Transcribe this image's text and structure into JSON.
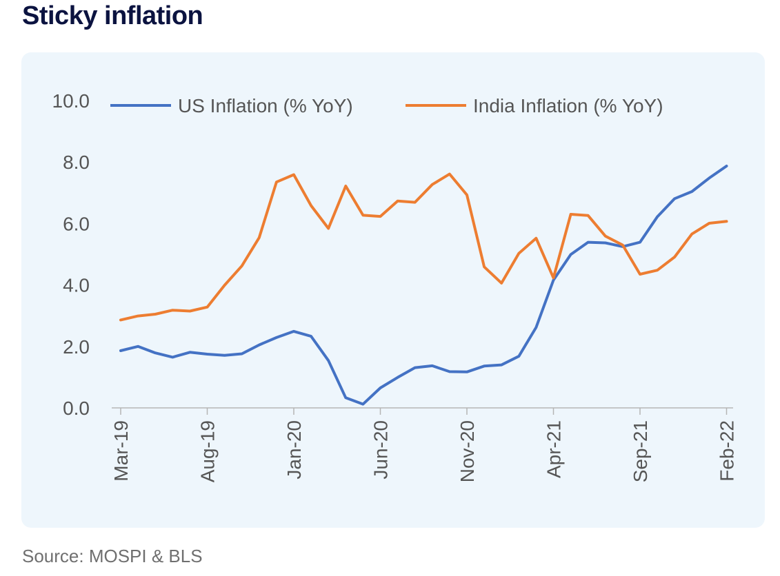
{
  "title": "Sticky inflation",
  "source": "Source: MOSPI & BLS",
  "chart_data": {
    "type": "line",
    "title": "Sticky inflation",
    "xlabel": "",
    "ylabel": "",
    "ylim": [
      0,
      10
    ],
    "yticks": [
      "0.0",
      "2.0",
      "4.0",
      "6.0",
      "8.0",
      "10.0"
    ],
    "x": [
      "Mar-19",
      "Apr-19",
      "May-19",
      "Jun-19",
      "Jul-19",
      "Aug-19",
      "Sep-19",
      "Oct-19",
      "Nov-19",
      "Dec-19",
      "Jan-20",
      "Feb-20",
      "Mar-20",
      "Apr-20",
      "May-20",
      "Jun-20",
      "Jul-20",
      "Aug-20",
      "Sep-20",
      "Oct-20",
      "Nov-20",
      "Dec-20",
      "Jan-21",
      "Feb-21",
      "Mar-21",
      "Apr-21",
      "May-21",
      "Jun-21",
      "Jul-21",
      "Aug-21",
      "Sep-21",
      "Oct-21",
      "Nov-21",
      "Dec-21",
      "Jan-22",
      "Feb-22"
    ],
    "xtick_labels": [
      "Mar-19",
      "Aug-19",
      "Jan-20",
      "Jun-20",
      "Nov-20",
      "Apr-21",
      "Sep-21",
      "Feb-22"
    ],
    "grid": false,
    "legend_position": "top",
    "series": [
      {
        "name": "US Inflation (% YoY)",
        "color": "#4472c4",
        "values": [
          1.86,
          2.0,
          1.79,
          1.65,
          1.81,
          1.75,
          1.71,
          1.76,
          2.05,
          2.29,
          2.49,
          2.33,
          1.54,
          0.33,
          0.12,
          0.65,
          0.99,
          1.31,
          1.37,
          1.18,
          1.17,
          1.36,
          1.4,
          1.68,
          2.62,
          4.16,
          4.99,
          5.39,
          5.37,
          5.25,
          5.39,
          6.22,
          6.81,
          7.04,
          7.48,
          7.87
        ]
      },
      {
        "name": "India Inflation (% YoY)",
        "color": "#ed7d31",
        "values": [
          2.86,
          2.99,
          3.05,
          3.18,
          3.15,
          3.28,
          3.99,
          4.62,
          5.54,
          7.35,
          7.59,
          6.58,
          5.84,
          7.22,
          6.27,
          6.23,
          6.73,
          6.69,
          7.27,
          7.61,
          6.93,
          4.59,
          4.06,
          5.03,
          5.52,
          4.23,
          6.3,
          6.26,
          5.59,
          5.3,
          4.35,
          4.48,
          4.91,
          5.66,
          6.01,
          6.07
        ]
      }
    ]
  }
}
